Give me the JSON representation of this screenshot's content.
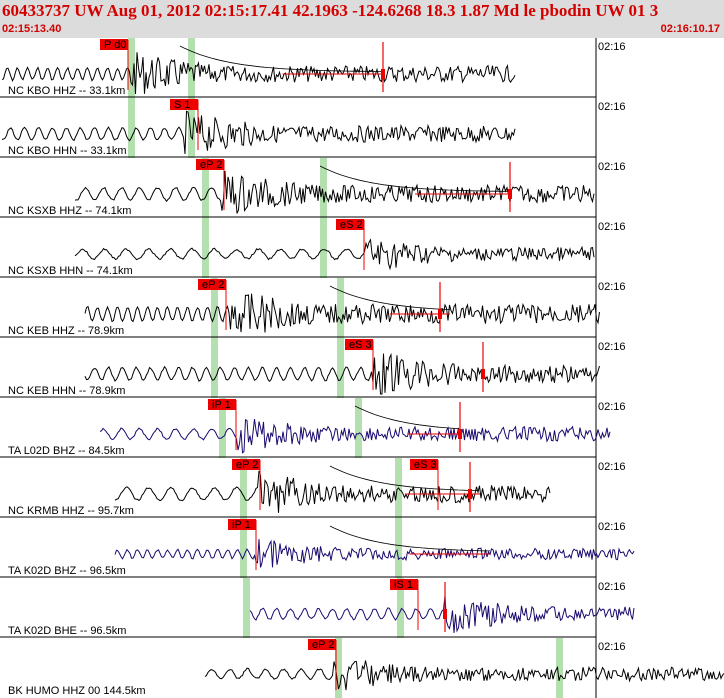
{
  "header": {
    "title": "60433737 UW Aug 01, 2012 02:15:17.41    42.1963 -124.6268 18.3 1.87 Md le pbodin UW 01    3",
    "start_time": "02:15:13.40",
    "end_time": "02:16:10.17"
  },
  "time_tick_label": "02:16",
  "colors": {
    "header_bg": "#dcdcdc",
    "header_text": "#d40000",
    "pick_box": "#ee0000",
    "pick_line": "#ee0000",
    "window_band": "#b4e0b0",
    "trace_black": "#000000",
    "trace_navy": "#1a0a6e"
  },
  "traces": [
    {
      "label": "NC KBO HHZ -- 33.1km",
      "color": "black",
      "picks": [
        {
          "label": "P d0"
        }
      ]
    },
    {
      "label": "NC KBO HHN -- 33.1km",
      "color": "black",
      "picks": [
        {
          "label": "S 1"
        }
      ]
    },
    {
      "label": "NC KSXB HHZ -- 74.1km",
      "color": "black",
      "picks": [
        {
          "label": "eP 2"
        }
      ]
    },
    {
      "label": "NC KSXB HHN -- 74.1km",
      "color": "black",
      "picks": [
        {
          "label": "eS 2"
        }
      ]
    },
    {
      "label": "NC KEB HHZ -- 78.9km",
      "color": "black",
      "picks": [
        {
          "label": "eP 2"
        }
      ]
    },
    {
      "label": "NC KEB HHN -- 78.9km",
      "color": "black",
      "picks": [
        {
          "label": "eS 3"
        }
      ]
    },
    {
      "label": "TA L02D BHZ -- 84.5km",
      "color": "navy",
      "picks": [
        {
          "label": "iP 1"
        }
      ]
    },
    {
      "label": "NC KRMB HHZ -- 95.7km",
      "color": "black",
      "picks": [
        {
          "label": "eP 2"
        },
        {
          "label": "eS 3"
        }
      ]
    },
    {
      "label": "TA K02D BHZ -- 96.5km",
      "color": "navy",
      "picks": [
        {
          "label": "iP 1"
        }
      ]
    },
    {
      "label": "TA K02D BHE -- 96.5km",
      "color": "navy",
      "picks": [
        {
          "label": "iS 1"
        }
      ]
    },
    {
      "label": "BK HUMO HHZ 00 144.5km",
      "color": "black",
      "picks": [
        {
          "label": "eP 2"
        }
      ]
    }
  ]
}
